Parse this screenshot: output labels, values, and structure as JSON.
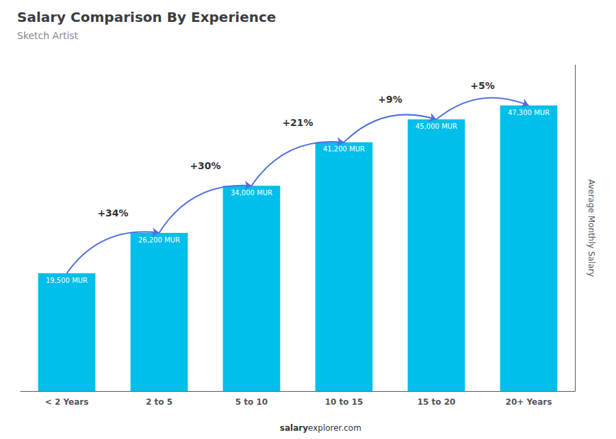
{
  "chart_data": {
    "type": "bar",
    "title": "Salary Comparison By Experience",
    "subtitle": "Sketch Artist",
    "categories": [
      "< 2 Years",
      "2 to 5",
      "5 to 10",
      "10 to 15",
      "15 to 20",
      "20+ Years"
    ],
    "values": [
      19500,
      26200,
      34000,
      41200,
      45000,
      47300
    ],
    "value_labels": [
      "19,500 MUR",
      "26,200 MUR",
      "34,000 MUR",
      "41,200 MUR",
      "45,000 MUR",
      "47,300 MUR"
    ],
    "data_labels": true,
    "color": "#00BFEA",
    "ylabel": "Average Monthly Salary",
    "ylim": [
      0,
      54000
    ],
    "tick_labels": "x",
    "grid": false,
    "annotations": [
      "+34%",
      "+30%",
      "+21%",
      "+9%",
      "+5%"
    ],
    "watermark": [
      "salary",
      "explorer.com"
    ]
  }
}
